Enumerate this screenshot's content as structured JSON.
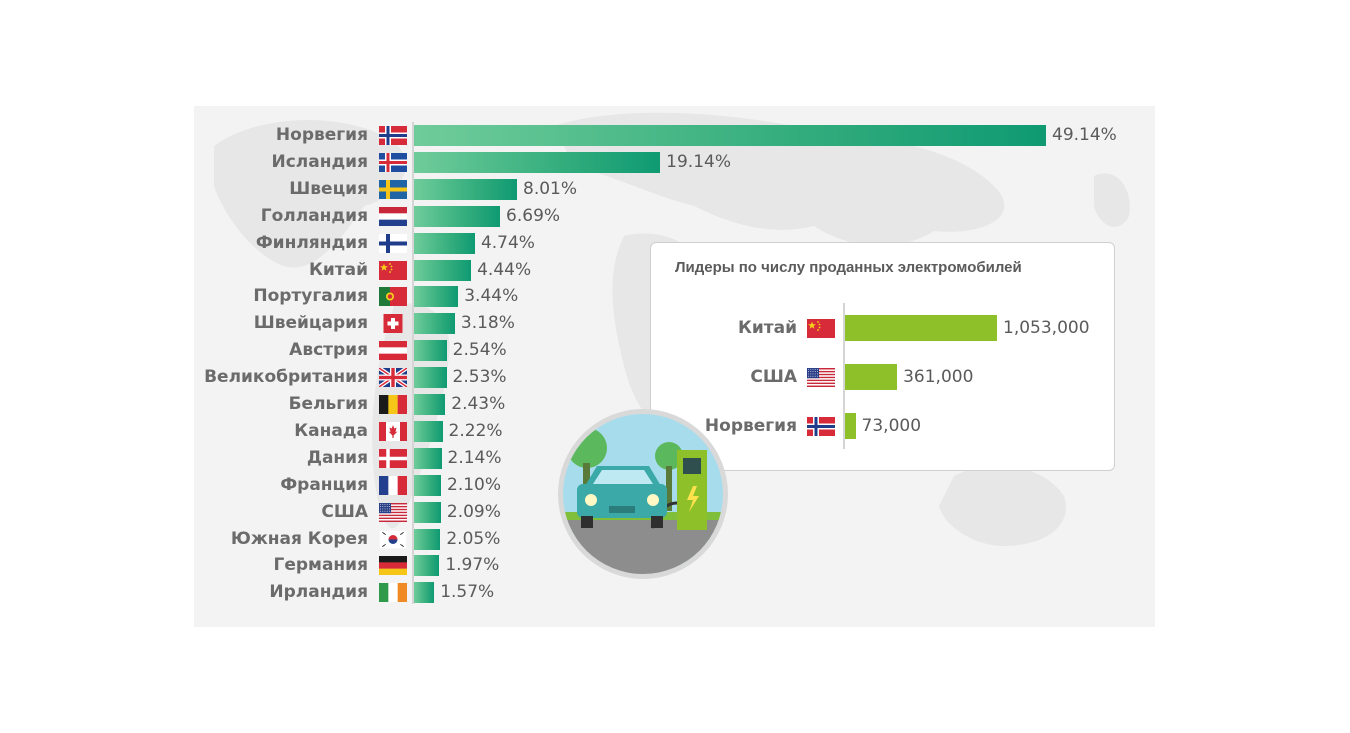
{
  "chart_data": [
    {
      "type": "bar",
      "orientation": "horizontal",
      "categories": [
        "Норвегия",
        "Исландия",
        "Швеция",
        "Голландия",
        "Финляндия",
        "Китай",
        "Португалия",
        "Швейцария",
        "Австрия",
        "Великобритания",
        "Бельгия",
        "Канада",
        "Дания",
        "Франция",
        "США",
        "Южная Корея",
        "Германия",
        "Ирландия"
      ],
      "values": [
        49.14,
        19.14,
        8.01,
        6.69,
        4.74,
        4.44,
        3.44,
        3.18,
        2.54,
        2.53,
        2.43,
        2.22,
        2.14,
        2.1,
        2.09,
        2.05,
        1.97,
        1.57
      ],
      "value_labels": [
        "49.14%",
        "19.14%",
        "8.01%",
        "6.69%",
        "4.74%",
        "4.44%",
        "3.44%",
        "3.18%",
        "2.54%",
        "2.53%",
        "2.43%",
        "2.22%",
        "2.14%",
        "2.10%",
        "2.09%",
        "2.05%",
        "1.97%",
        "1.57%"
      ],
      "flags": [
        "flag-norway-icon",
        "flag-iceland-icon",
        "flag-sweden-icon",
        "flag-netherlands-icon",
        "flag-finland-icon",
        "flag-china-icon",
        "flag-portugal-icon",
        "flag-switzerland-icon",
        "flag-austria-icon",
        "flag-uk-icon",
        "flag-belgium-icon",
        "flag-canada-icon",
        "flag-denmark-icon",
        "flag-france-icon",
        "flag-usa-icon",
        "flag-south-korea-icon",
        "flag-germany-icon",
        "flag-ireland-icon"
      ],
      "xlim": [
        0,
        49.14
      ],
      "grid": false,
      "bar_color_gradient": [
        "#6fcc9a",
        "#0f9a72"
      ]
    },
    {
      "type": "bar",
      "orientation": "horizontal",
      "title": "Лидеры по числу проданных электромобилей",
      "categories": [
        "Китай",
        "США",
        "Норвегия"
      ],
      "values": [
        1053000,
        361000,
        73000
      ],
      "value_labels": [
        "1,053,000",
        "361,000",
        "73,000"
      ],
      "flags": [
        "flag-china-icon",
        "flag-usa-icon",
        "flag-norway-icon"
      ],
      "xlim": [
        0,
        1053000
      ],
      "bar_color": "#8dc029",
      "grid": false
    }
  ],
  "illustration": {
    "icon": "ev-charging-station-icon",
    "colors": {
      "car": "#3aa9a8",
      "charger": "#8dc029",
      "sky": "#a7dcec",
      "road": "#8d8d8d"
    }
  }
}
